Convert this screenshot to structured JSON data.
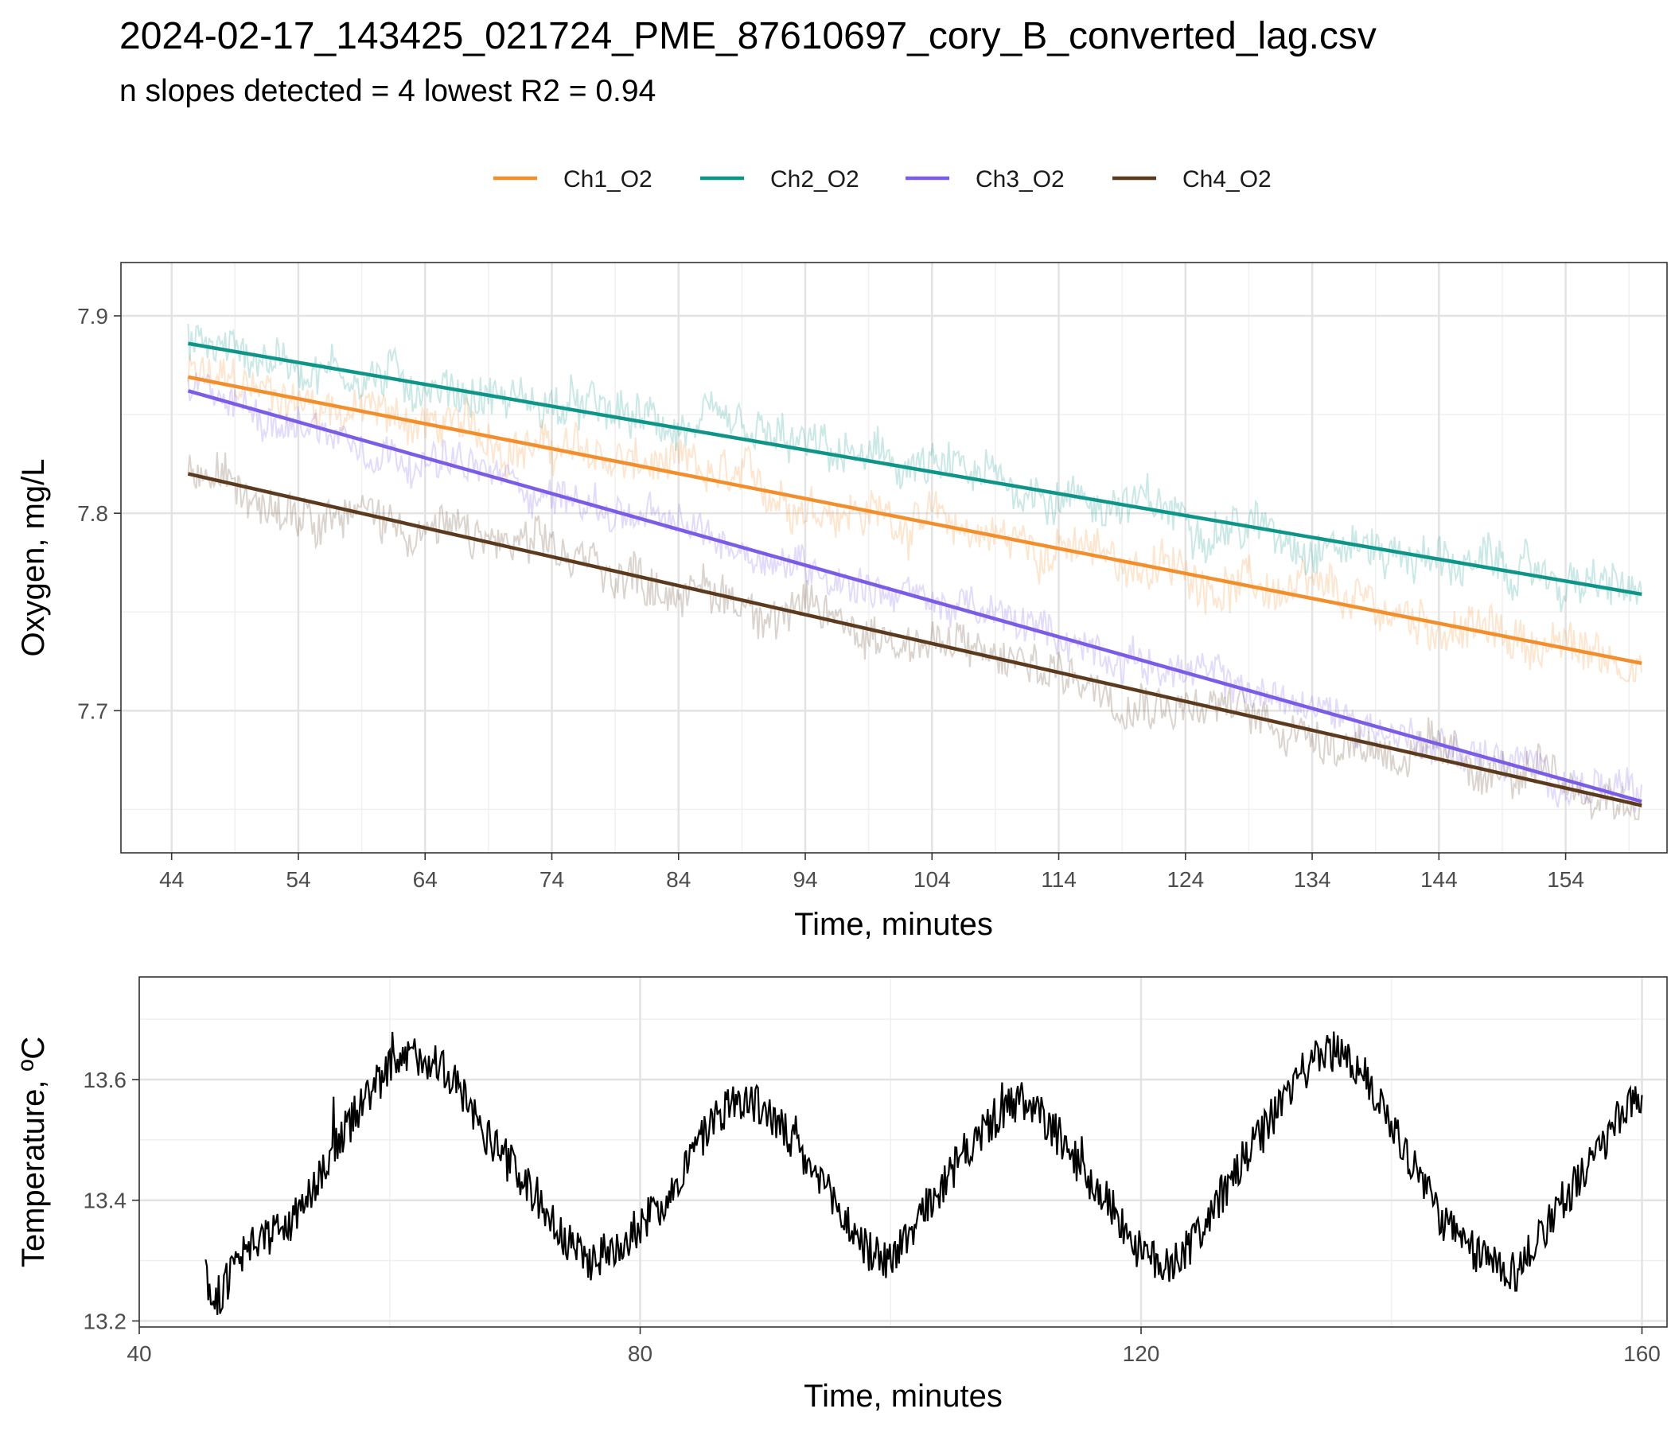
{
  "title": "2024-02-17_143425_021724_PME_87610697_cory_B_converted_lag.csv",
  "subtitle": "n slopes detected = 4  lowest R2 = 0.94",
  "chart_data": [
    {
      "type": "line",
      "xlabel": "Time, minutes",
      "ylabel": "Oxygen, mg/L",
      "xlim": [
        40,
        162
      ],
      "ylim": [
        7.628,
        7.927
      ],
      "x_ticks": [
        44,
        54,
        64,
        74,
        84,
        94,
        104,
        114,
        124,
        134,
        144,
        154
      ],
      "y_ticks": [
        7.7,
        7.8,
        7.9
      ],
      "grid": true,
      "legend_position": "top",
      "series": [
        {
          "name": "Ch1_O2",
          "color": "#F28E2B",
          "fit": {
            "x": [
              45.3,
              160
            ],
            "y": [
              7.869,
              7.724
            ]
          },
          "raw_range": [
            7.715,
            7.9
          ],
          "noise": 0.012
        },
        {
          "name": "Ch2_O2",
          "color": "#0E9488",
          "fit": {
            "x": [
              45.3,
              160
            ],
            "y": [
              7.886,
              7.759
            ]
          },
          "raw_range": [
            7.75,
            7.913
          ],
          "noise": 0.012
        },
        {
          "name": "Ch3_O2",
          "color": "#7B5CE6",
          "fit": {
            "x": [
              45.3,
              160
            ],
            "y": [
              7.862,
              7.654
            ]
          },
          "raw_range": [
            7.64,
            7.89
          ],
          "noise": 0.01
        },
        {
          "name": "Ch4_O2",
          "color": "#5C3A1E",
          "fit": {
            "x": [
              45.3,
              160
            ],
            "y": [
              7.82,
              7.652
            ]
          },
          "raw_range": [
            7.645,
            7.84
          ],
          "noise": 0.012
        }
      ]
    },
    {
      "type": "line",
      "xlabel": "Time, minutes",
      "ylabel": "Temperature, ºC",
      "xlim": [
        40,
        162
      ],
      "ylim": [
        13.19,
        13.77
      ],
      "x_ticks": [
        40,
        80,
        120,
        160
      ],
      "y_ticks": [
        13.2,
        13.4,
        13.6
      ],
      "grid": true,
      "series": [
        {
          "color": "#000000",
          "x": [
            45.3,
            46,
            48,
            50,
            52,
            54,
            56,
            58,
            60,
            62,
            64,
            66,
            68,
            70,
            72,
            74,
            76,
            78,
            80,
            82,
            84,
            86,
            88,
            90,
            92,
            94,
            96,
            98,
            100,
            102,
            104,
            106,
            108,
            110,
            112,
            114,
            116,
            118,
            120,
            122,
            124,
            126,
            128,
            130,
            132,
            134,
            136,
            138,
            140,
            142,
            144,
            146,
            148,
            150,
            152,
            154,
            156,
            158,
            160
          ],
          "y": [
            13.28,
            13.23,
            13.3,
            13.34,
            13.36,
            13.43,
            13.5,
            13.57,
            13.62,
            13.64,
            13.63,
            13.57,
            13.5,
            13.45,
            13.4,
            13.33,
            13.3,
            13.32,
            13.36,
            13.4,
            13.47,
            13.54,
            13.57,
            13.55,
            13.5,
            13.44,
            13.38,
            13.32,
            13.3,
            13.36,
            13.42,
            13.48,
            13.53,
            13.56,
            13.54,
            13.49,
            13.43,
            13.38,
            13.31,
            13.29,
            13.33,
            13.39,
            13.46,
            13.52,
            13.59,
            13.64,
            13.65,
            13.6,
            13.53,
            13.45,
            13.37,
            13.32,
            13.3,
            13.28,
            13.35,
            13.41,
            13.46,
            13.53,
            13.57
          ]
        }
      ]
    }
  ]
}
